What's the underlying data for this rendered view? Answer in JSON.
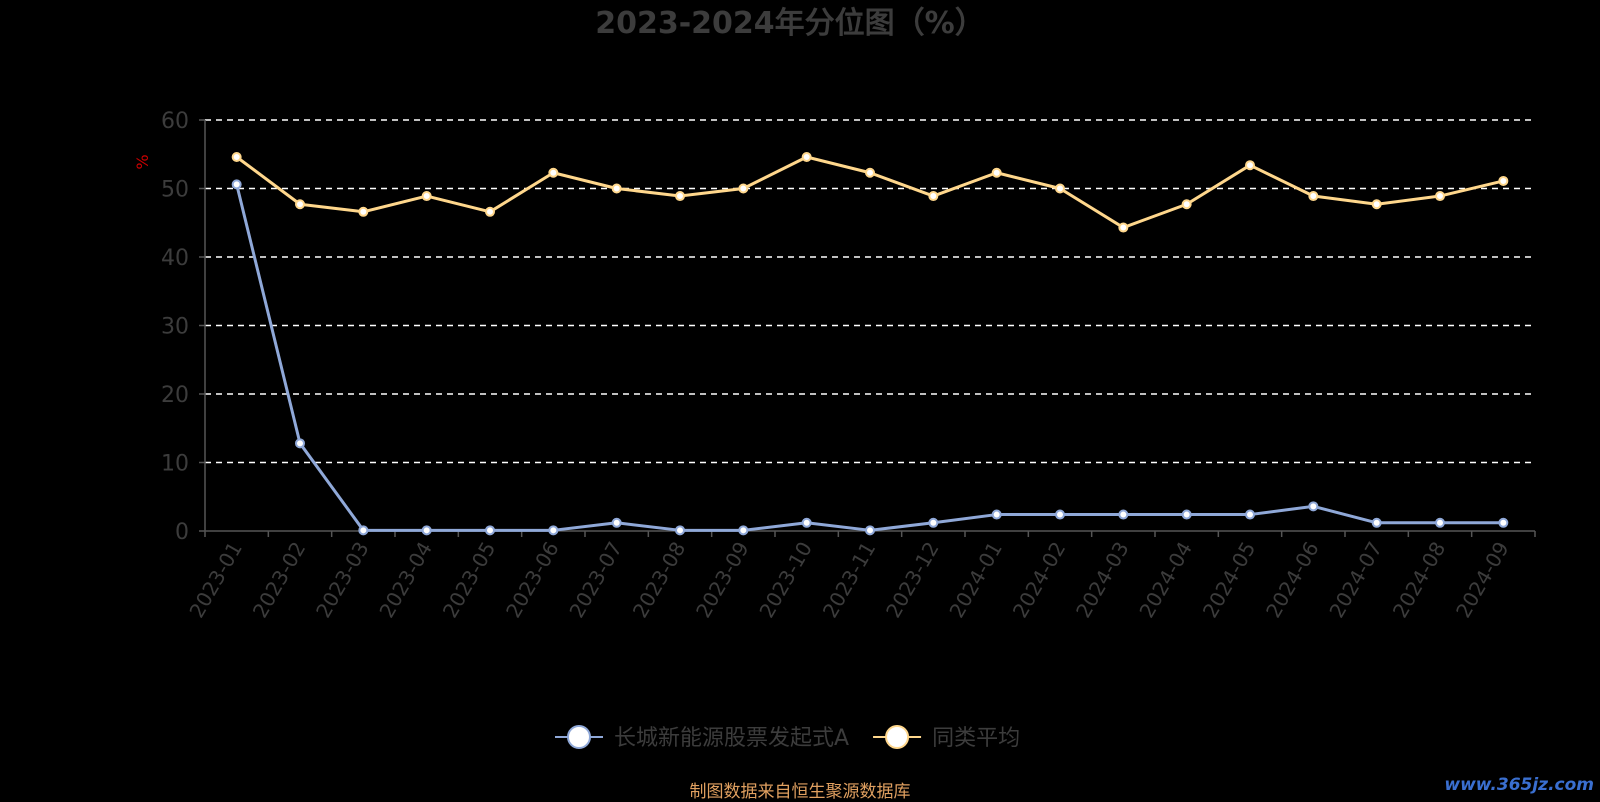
{
  "chart_data": {
    "type": "line",
    "title": "2023-2024年分位图（%）",
    "ylabel": "%",
    "ylim": [
      0,
      60
    ],
    "yticks": [
      0,
      10,
      20,
      30,
      40,
      50,
      60
    ],
    "grid": true,
    "legend_position": "bottom-center",
    "x": [
      "2023-01",
      "2023-02",
      "2023-03",
      "2023-04",
      "2023-05",
      "2023-06",
      "2023-07",
      "2023-08",
      "2023-09",
      "2023-10",
      "2023-11",
      "2023-12",
      "2024-01",
      "2024-02",
      "2024-03",
      "2024-04",
      "2024-05",
      "2024-06",
      "2024-07",
      "2024-08",
      "2024-09"
    ],
    "series": [
      {
        "name": "长城新能源股票发起式A",
        "color": "#8fa8d8",
        "values": [
          50.6,
          12.8,
          0.1,
          0.1,
          0.1,
          0.1,
          1.2,
          0.1,
          0.1,
          1.2,
          0.1,
          1.2,
          2.4,
          2.4,
          2.4,
          2.4,
          2.4,
          3.6,
          1.2,
          1.2,
          1.2
        ]
      },
      {
        "name": "同类平均",
        "color": "#ffd78c",
        "values": [
          54.6,
          47.7,
          46.6,
          48.9,
          46.6,
          52.3,
          50.0,
          48.9,
          50.0,
          54.6,
          52.3,
          48.9,
          52.3,
          50.0,
          44.3,
          47.7,
          53.4,
          48.9,
          47.7,
          48.9,
          51.1
        ]
      }
    ]
  },
  "footer": {
    "source": "制图数据来自恒生聚源数据库",
    "watermark": "www.365jz.com"
  },
  "colors": {
    "background": "#000000",
    "axis": "#555555",
    "grid": "#ffffff",
    "ylabel": "#cc0000",
    "title": "#3c3c3c"
  }
}
